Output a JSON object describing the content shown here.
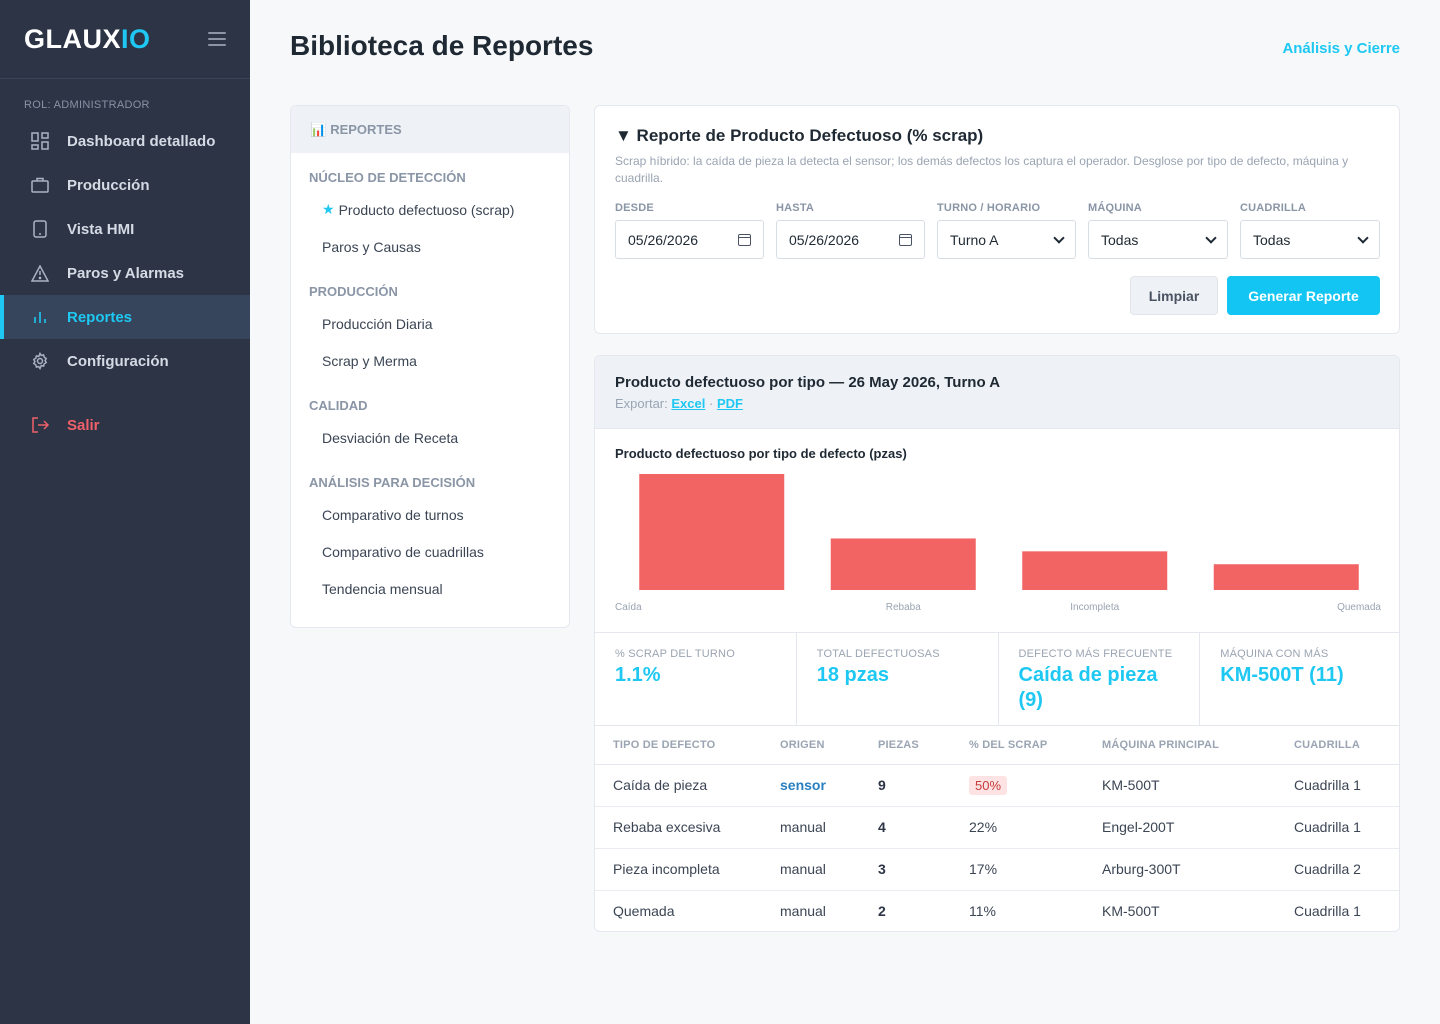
{
  "app": {
    "logo_main": "GLAUX",
    "logo_accent": "IO"
  },
  "sidebar": {
    "role": "ROL: ADMINISTRADOR",
    "items": [
      {
        "label": "Dashboard detallado",
        "icon": "dashboard-icon"
      },
      {
        "label": "Producción",
        "icon": "briefcase-icon"
      },
      {
        "label": "Vista HMI",
        "icon": "tablet-icon"
      },
      {
        "label": "Paros y Alarmas",
        "icon": "warning-icon"
      },
      {
        "label": "Reportes",
        "icon": "bar-chart-icon",
        "active": true
      },
      {
        "label": "Configuración",
        "icon": "gear-icon"
      }
    ],
    "logout": "Salir"
  },
  "header": {
    "title": "Biblioteca de Reportes",
    "link": "Análisis y Cierre"
  },
  "report_list": {
    "heading_icon": "📊",
    "heading": "REPORTES",
    "groups": [
      {
        "title": "NÚCLEO DE DETECCIÓN",
        "items": [
          "Producto defectuoso (scrap)",
          "Paros y Causas"
        ]
      },
      {
        "title": "PRODUCCIÓN",
        "items": [
          "Producción Diaria",
          "Scrap y Merma"
        ]
      },
      {
        "title": "CALIDAD",
        "items": [
          "Desviación de Receta"
        ]
      },
      {
        "title": "ANÁLISIS PARA DECISIÓN",
        "items": [
          "Comparativo de turnos",
          "Comparativo de cuadrillas",
          "Tendencia mensual"
        ]
      }
    ],
    "star": "★"
  },
  "filters": {
    "title": "▼ Reporte de Producto Defectuoso (% scrap)",
    "description": "Scrap híbrido: la caída de pieza la detecta el sensor; los demás defectos los captura el operador. Desglose por tipo de defecto, máquina y cuadrilla.",
    "desde_label": "DESDE",
    "desde_value": "05/26/2026",
    "hasta_label": "HASTA",
    "hasta_value": "05/26/2026",
    "turno_label": "TURNO / HORARIO",
    "turno_value": "Turno A",
    "maquina_label": "MÁQUINA",
    "maquina_value": "Todas",
    "cuadrilla_label": "CUADRILLA",
    "cuadrilla_value": "Todas",
    "clear_button": "Limpiar",
    "generate_button": "Generar Reporte"
  },
  "result": {
    "title": "Producto defectuoso por tipo — 26 May 2026, Turno A",
    "export_label": "Exportar:",
    "export_excel": "Excel",
    "export_sep": "·",
    "export_pdf": "PDF"
  },
  "chart_data": {
    "type": "bar",
    "title": "Producto defectuoso por tipo de defecto (pzas)",
    "categories": [
      "Caída",
      "Rebaba",
      "Incompleta",
      "Quemada"
    ],
    "values": [
      9,
      4,
      3,
      2
    ],
    "ylim": [
      0,
      9
    ],
    "color": "#f26464",
    "grid": false
  },
  "kpis": [
    {
      "label": "% SCRAP DEL TURNO",
      "value": "1.1%"
    },
    {
      "label": "TOTAL DEFECTUOSAS",
      "value": "18 pzas"
    },
    {
      "label": "DEFECTO MÁS FRECUENTE",
      "value": "Caída de pieza (9)"
    },
    {
      "label": "MÁQUINA CON MÁS",
      "value": "KM-500T (11)"
    }
  ],
  "table": {
    "headers": [
      "TIPO DE DEFECTO",
      "ORIGEN",
      "PIEZAS",
      "% DEL SCRAP",
      "MÁQUINA PRINCIPAL",
      "CUADRILLA"
    ],
    "rows": [
      [
        "Caída de pieza",
        "sensor",
        "9",
        "50%",
        "KM-500T",
        "Cuadrilla 1"
      ],
      [
        "Rebaba excesiva",
        "manual",
        "4",
        "22%",
        "Engel-200T",
        "Cuadrilla 1"
      ],
      [
        "Pieza incompleta",
        "manual",
        "3",
        "17%",
        "Arburg-300T",
        "Cuadrilla 2"
      ],
      [
        "Quemada",
        "manual",
        "2",
        "11%",
        "KM-500T",
        "Cuadrilla 1"
      ]
    ]
  },
  "colors": {
    "accent": "#1ec8f2",
    "sidebar": "#2c3446",
    "bar": "#f26464",
    "danger": "#f0606a"
  }
}
